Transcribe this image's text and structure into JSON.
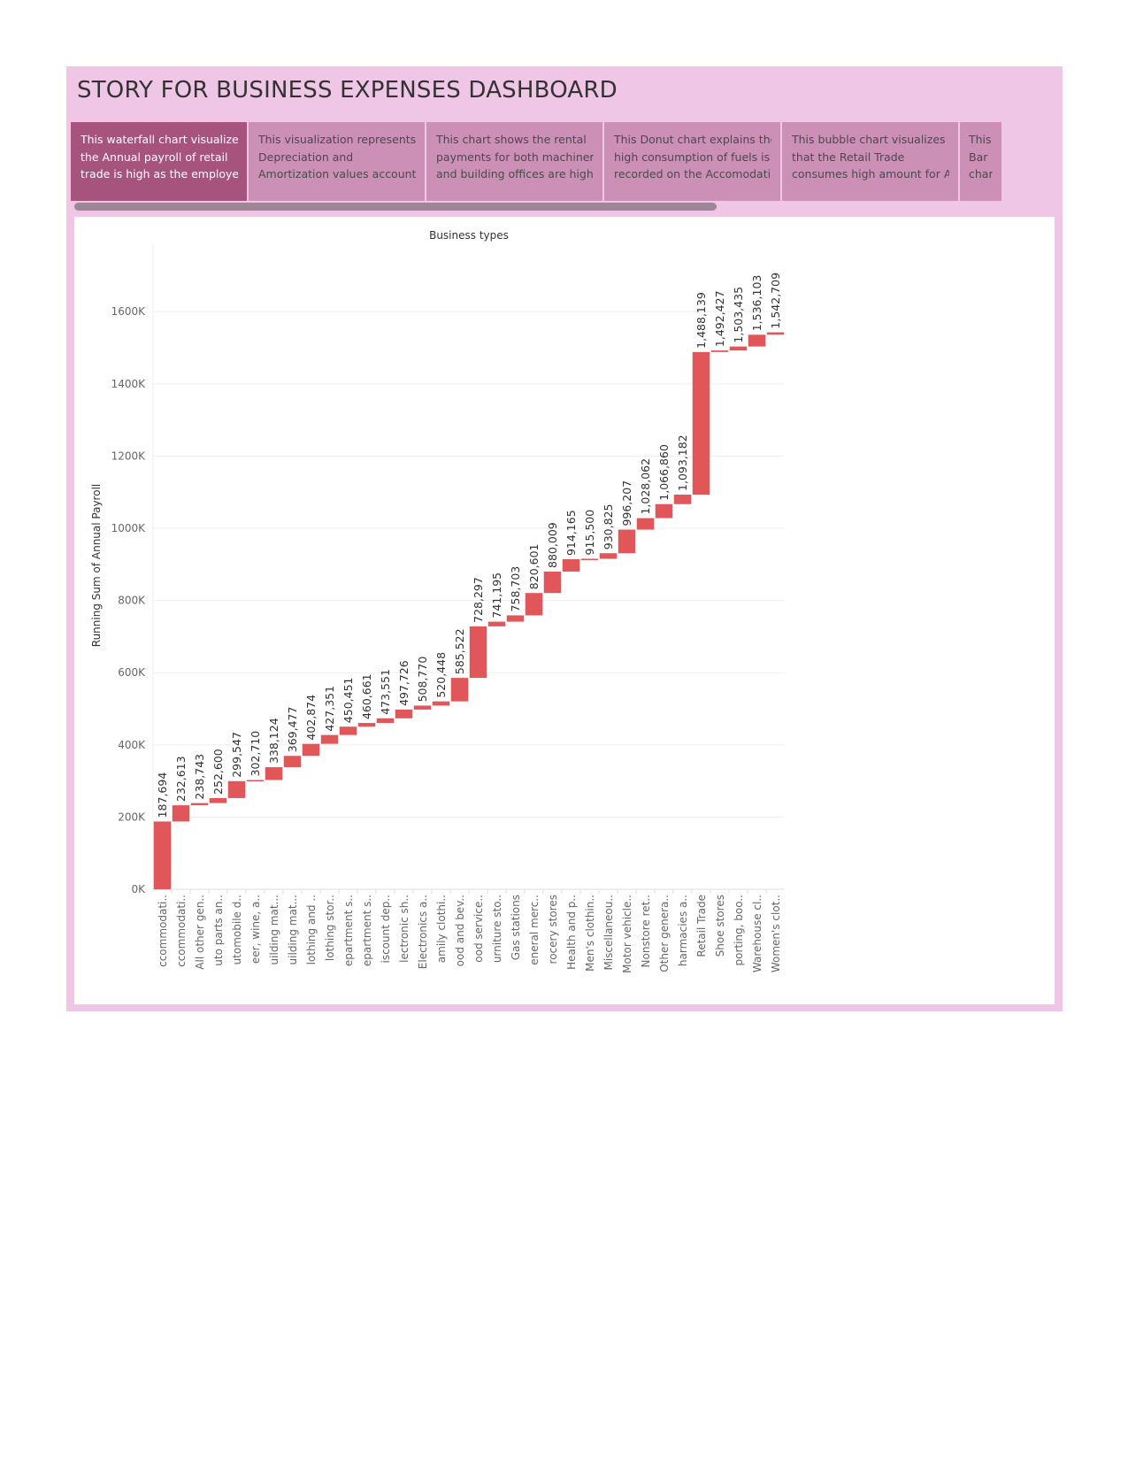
{
  "story": {
    "title": "STORY FOR BUSINESS EXPENSES DASHBOARD",
    "captions": [
      {
        "lines": [
          "This waterfall chart visualizes",
          "the Annual payroll of retail",
          "trade is high as the employe.."
        ],
        "active": true
      },
      {
        "lines": [
          "This visualization represents",
          "Depreciation and",
          "Amortization values account.."
        ],
        "active": false
      },
      {
        "lines": [
          "This chart shows the rental",
          "payments for both machinery",
          "and building offices are high .."
        ],
        "active": false
      },
      {
        "lines": [
          "This Donut chart explains the",
          "high consumption of fuels is",
          "recorded on the Accomodati.."
        ],
        "active": false
      },
      {
        "lines": [
          "This bubble chart visualizes",
          "that the Retail Trade",
          "consumes high amount for A.."
        ],
        "active": false
      },
      {
        "lines": [
          "This",
          "Bar",
          "char.."
        ],
        "active": false
      }
    ]
  },
  "colors": {
    "frame": "#f0c6e6",
    "active_caption": "#a6537e",
    "caption": "#cc8fb6",
    "bar": "#e05659"
  },
  "chart_data": {
    "type": "waterfall",
    "title": "Business types",
    "ylabel": "Running Sum of Annual Payroll",
    "xlabel": "",
    "ylim": [
      0,
      1750000
    ],
    "yticks": [
      0,
      200000,
      400000,
      600000,
      800000,
      1000000,
      1200000,
      1400000,
      1600000
    ],
    "ytick_labels": [
      "0K",
      "200K",
      "400K",
      "600K",
      "800K",
      "1000K",
      "1200K",
      "1400K",
      "1600K"
    ],
    "grid": true,
    "categories": [
      "ccommodati..",
      "ccommodati..",
      "All other gen..",
      "uto parts an..",
      "utomobile d..",
      "eer, wine, a..",
      "uilding mat...",
      "uilding mat...",
      "lothing and ..",
      "lothing stor..",
      "epartment s..",
      "epartment s..",
      "iscount dep..",
      "lectronic sh..",
      "Electronics a..",
      "amily clothi..",
      "ood and bev..",
      "ood service..",
      "urniture sto..",
      "Gas stations",
      "eneral merc..",
      "rocery stores",
      "Health and p..",
      "Men's clothin..",
      "Miscellaneou..",
      "Motor vehicle..",
      "Nonstore ret..",
      "Other genera..",
      "harmacies a..",
      "Retail Trade",
      "Shoe stores",
      "porting, boo..",
      "Warehouse cl..",
      "Women's clot.."
    ],
    "values": [
      187694,
      232613,
      238743,
      252600,
      299547,
      302710,
      338124,
      369477,
      402874,
      427351,
      450451,
      460661,
      473551,
      497726,
      508770,
      520448,
      585522,
      728297,
      741195,
      758703,
      820601,
      880009,
      914165,
      915500,
      930825,
      996207,
      1028062,
      1066860,
      1093182,
      1488139,
      1492427,
      1503435,
      1536103,
      1542709
    ],
    "value_labels": [
      "187,694",
      "232,613",
      "238,743",
      "252,600",
      "299,547",
      "302,710",
      "338,124",
      "369,477",
      "402,874",
      "427,351",
      "450,451",
      "460,661",
      "473,551",
      "497,726",
      "508,770",
      "520,448",
      "585,522",
      "728,297",
      "741,195",
      "758,703",
      "820,601",
      "880,009",
      "914,165",
      "915,500",
      "930,825",
      "996,207",
      "1,028,062",
      "1,066,860",
      "1,093,182",
      "1,488,139",
      "1,492,427",
      "1,503,435",
      "1,536,103",
      "1,542,709"
    ]
  }
}
